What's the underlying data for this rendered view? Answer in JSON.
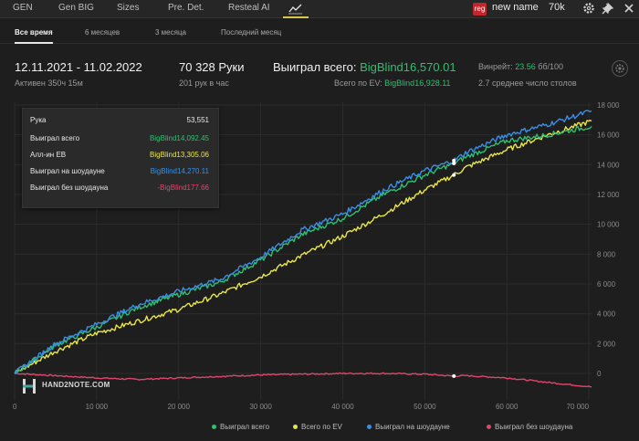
{
  "nav": {
    "tabs": [
      {
        "label": "GEN"
      },
      {
        "label": "Gen BIG"
      },
      {
        "label": "Sizes"
      },
      {
        "label": "Pre. Det."
      },
      {
        "label": "Resteal AI"
      }
    ],
    "reg_badge": "reg",
    "user_name": "new name",
    "bank": "70k"
  },
  "periods": [
    {
      "label": "Все время",
      "active": true
    },
    {
      "label": "6 месяцев",
      "active": false
    },
    {
      "label": "3 месяца",
      "active": false
    },
    {
      "label": "Последний месяц",
      "active": false
    }
  ],
  "summary": {
    "date_range": "12.11.2021 - 11.02.2022",
    "active": "Активен 350ч 15м",
    "hands": "70 328 Руки",
    "hands_per_hour": "201 рук в час",
    "won_label": "Выиграл всего:",
    "won_value": "BigBlind16,570.01",
    "ev_label": "Всего по EV:",
    "ev_value": "BigBlind16,928.11",
    "winrate_label": "Винрейт:",
    "winrate_value": "23.56",
    "winrate_unit": "бб/100",
    "tables": "2.7 среднее число столов"
  },
  "tooltip": {
    "hand_label": "Рука",
    "hand_value": "53,551",
    "rows": [
      {
        "label": "Выиграл всего",
        "value": "BigBlind14,092.45",
        "color": "#2fbf71"
      },
      {
        "label": "Алл-ин EB",
        "value": "BigBlind13,305.06",
        "color": "#e9e54b"
      },
      {
        "label": "Выиграл на шоудауне",
        "value": "BigBlind14,270.11",
        "color": "#3a8ee6"
      },
      {
        "label": "Выиграл без шоудауна",
        "value": "-BigBlind177.66",
        "color": "#e0456b"
      }
    ]
  },
  "logo_text": "HAND2NOTE.COM",
  "colors": {
    "won_total": "#2fbf71",
    "ev": "#e9e54b",
    "showdown": "#3a8ee6",
    "non_showdown": "#e0456b",
    "accent": "#d9c64a"
  },
  "chart_data": {
    "type": "line",
    "x_ticks": [
      "0",
      "10 000",
      "20 000",
      "30 000",
      "40 000",
      "50 000",
      "60 000",
      "70 000"
    ],
    "y_ticks": [
      "0",
      "2 000",
      "4 000",
      "6 000",
      "8 000",
      "10 000",
      "12 000",
      "14 000",
      "16 000",
      "18 000"
    ],
    "xlim": [
      0,
      70328
    ],
    "ylim": [
      -1500,
      18000
    ],
    "grid": true,
    "legend_position": "bottom-right",
    "x": [
      0,
      5000,
      10000,
      15000,
      20000,
      25000,
      30000,
      35000,
      40000,
      45000,
      50000,
      53551,
      55000,
      60000,
      65000,
      70328
    ],
    "series": [
      {
        "name": "Выиграл всего",
        "color": "#2fbf71",
        "values": [
          0,
          1900,
          3100,
          4400,
          5300,
          6100,
          7600,
          9300,
          10400,
          12000,
          13300,
          14092,
          14500,
          15600,
          16000,
          16570
        ]
      },
      {
        "name": "Всего по EV",
        "color": "#e9e54b",
        "values": [
          0,
          1500,
          2700,
          3500,
          4300,
          5300,
          6500,
          7900,
          9200,
          10700,
          12300,
          13305,
          13800,
          15000,
          16000,
          16928
        ]
      },
      {
        "name": "Выиграл на шоудауне",
        "color": "#3a8ee6",
        "values": [
          0,
          2000,
          3300,
          4600,
          5500,
          6300,
          7800,
          9600,
          10700,
          12300,
          13600,
          14270,
          14800,
          16000,
          16700,
          17600
        ]
      },
      {
        "name": "Выиграл без шоудауна",
        "color": "#e0456b",
        "values": [
          0,
          -150,
          -300,
          -400,
          -300,
          -200,
          -100,
          -50,
          0,
          0,
          -50,
          -178,
          -150,
          -300,
          -600,
          -900
        ]
      }
    ],
    "highlight_x": 53551
  }
}
